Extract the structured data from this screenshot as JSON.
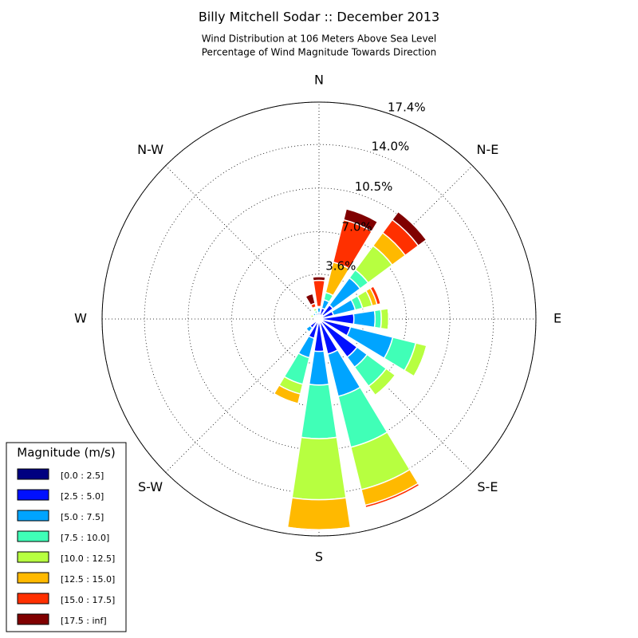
{
  "chart_data": {
    "type": "windrose",
    "title": "Billy Mitchell Sodar :: December 2013",
    "subtitle": [
      "Wind Distribution at 106 Meters Above Sea Level",
      "Percentage of Wind Magnitude Towards Direction"
    ],
    "categories": [
      "N",
      null,
      "N-E",
      null,
      "E",
      null,
      "S-E",
      null,
      "S",
      null,
      "S-W",
      null,
      "W",
      null,
      "N-W",
      null
    ],
    "ylim": [
      0,
      17.4
    ],
    "yticks": [
      {
        "value": 3.6,
        "label": "3.6%"
      },
      {
        "value": 7.0,
        "label": "7.0%"
      },
      {
        "value": 10.5,
        "label": "10.5%"
      },
      {
        "value": 14.0,
        "label": "14.0%"
      },
      {
        "value": 17.4,
        "label": "17.4%"
      }
    ],
    "grid": true,
    "legend_title": "Magnitude (m/s)",
    "legend_position": "lower-left",
    "series": [
      {
        "name": "[0.0 : 2.5]",
        "color": "#000080",
        "values": [
          0.1,
          0.2,
          0.4,
          0.2,
          0.2,
          0.3,
          0.3,
          0.3,
          0.2,
          0.2,
          0.2,
          0.1,
          0.1,
          0.1,
          0.1,
          0.1
        ]
      },
      {
        "name": "[2.5 : 5.0]",
        "color": "#0010ff",
        "values": [
          0.4,
          0.7,
          1.0,
          1.0,
          2.6,
          2.3,
          3.5,
          2.6,
          2.4,
          1.4,
          0.7,
          0.2,
          0.1,
          0.2,
          0.3,
          0.2
        ]
      },
      {
        "name": "[5.0 : 7.5]",
        "color": "#00a4ff",
        "values": [
          0.4,
          0.7,
          2.7,
          1.8,
          1.7,
          3.5,
          1.0,
          3.5,
          2.7,
          1.6,
          0.4,
          0.1,
          0.1,
          0.1,
          0.2,
          0.2
        ]
      },
      {
        "name": "[7.5 : 10.0]",
        "color": "#40ffb7",
        "values": [
          0.1,
          0.6,
          0.8,
          0.6,
          0.5,
          1.9,
          1.9,
          4.2,
          4.3,
          2.2,
          0.1,
          0.1,
          0,
          0.1,
          0.1,
          0.2
        ]
      },
      {
        "name": "[10.0 : 12.5]",
        "color": "#b7ff40",
        "values": [
          0,
          0,
          2.4,
          0.8,
          0.6,
          0.9,
          0.9,
          3.5,
          4.9,
          0.8,
          0,
          0,
          0,
          0.2,
          0.1,
          0.2
        ]
      },
      {
        "name": "[12.5 : 15.0]",
        "color": "#ffb900",
        "values": [
          0,
          2.5,
          1.3,
          0.4,
          0,
          0,
          0.1,
          1.3,
          2.4,
          0.8,
          0,
          0,
          0,
          0.1,
          0,
          0.1
        ]
      },
      {
        "name": "[15.0 : 17.5]",
        "color": "#ff3000",
        "values": [
          2.1,
          3.5,
          1.3,
          0.3,
          0,
          0,
          0,
          0.2,
          0.1,
          0,
          0,
          0,
          0,
          0,
          0,
          0.3
        ]
      },
      {
        "name": "[17.5 : inf]",
        "color": "#800000",
        "values": [
          0.3,
          0.9,
          0.8,
          0,
          0,
          0,
          0,
          0,
          0,
          0,
          0,
          0,
          0,
          0,
          0,
          0.8
        ]
      }
    ]
  }
}
